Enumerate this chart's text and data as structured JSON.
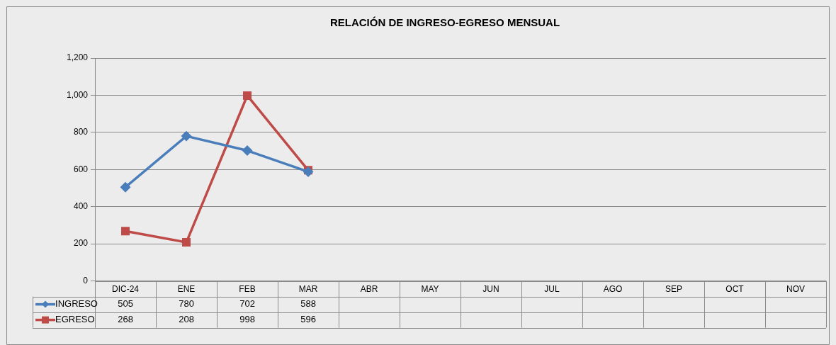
{
  "chart_data": {
    "type": "line",
    "title": "RELACIÓN DE INGRESO-EGRESO MENSUAL",
    "categories": [
      "DIC-24",
      "ENE",
      "FEB",
      "MAR",
      "ABR",
      "MAY",
      "JUN",
      "JUL",
      "AGO",
      "SEP",
      "OCT",
      "NOV"
    ],
    "series": [
      {
        "name": "INGRESO",
        "color": "#4a7ebb",
        "marker": "diamond",
        "values": [
          505,
          780,
          702,
          588,
          null,
          null,
          null,
          null,
          null,
          null,
          null,
          null
        ]
      },
      {
        "name": "EGRESO",
        "color": "#be4b48",
        "marker": "square",
        "values": [
          268,
          208,
          998,
          596,
          null,
          null,
          null,
          null,
          null,
          null,
          null,
          null
        ]
      }
    ],
    "ylim": [
      0,
      1200
    ],
    "yticks": [
      0,
      200,
      400,
      600,
      800,
      {
        "value": 1000,
        "label": "1,000"
      },
      {
        "value": 1200,
        "label": "1,200"
      }
    ],
    "grid": "y",
    "legend": "bottom",
    "data_labels": true,
    "line_style": "solid"
  }
}
